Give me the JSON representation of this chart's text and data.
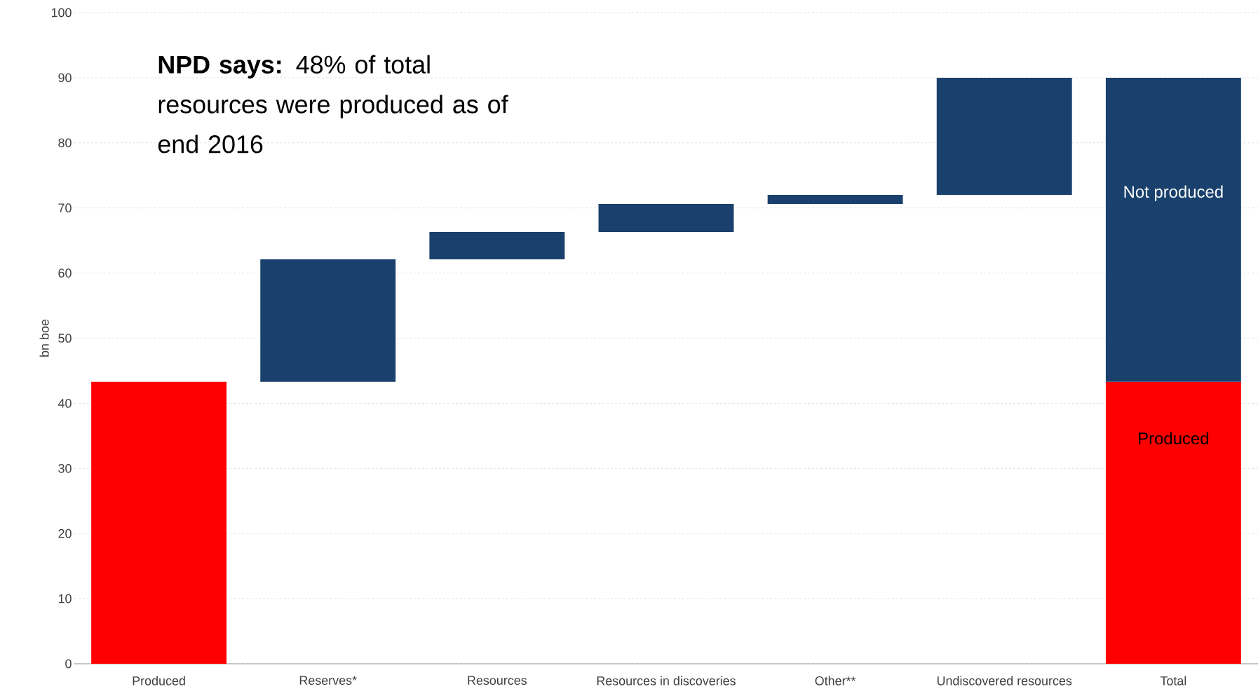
{
  "chart_data": {
    "type": "bar",
    "ylabel": "bn boe",
    "categories": [
      "Produced",
      "Reserves*",
      "Resources",
      "Resources in discoveries",
      "Other**",
      "Undiscovered resources",
      "Total"
    ],
    "series": [
      {
        "name": "Produced",
        "color": "#ff0000",
        "values": [
          43.3,
          null,
          null,
          null,
          null,
          null,
          43.3
        ],
        "base": [
          0,
          null,
          null,
          null,
          null,
          null,
          0
        ]
      },
      {
        "name": "Not produced",
        "color": "#1a416d",
        "values": [
          null,
          18.8,
          4.2,
          4.3,
          1.4,
          18.0,
          46.7
        ],
        "base": [
          null,
          43.3,
          62.1,
          66.3,
          70.6,
          72.0,
          43.3
        ]
      }
    ],
    "ylim": [
      0,
      100
    ],
    "yticks": [
      0,
      10,
      20,
      30,
      40,
      50,
      60,
      70,
      80,
      90,
      100
    ],
    "grid": "y",
    "annotations": [
      "**NPD says:** 48% of total resources were produced as of end 2016"
    ]
  }
}
